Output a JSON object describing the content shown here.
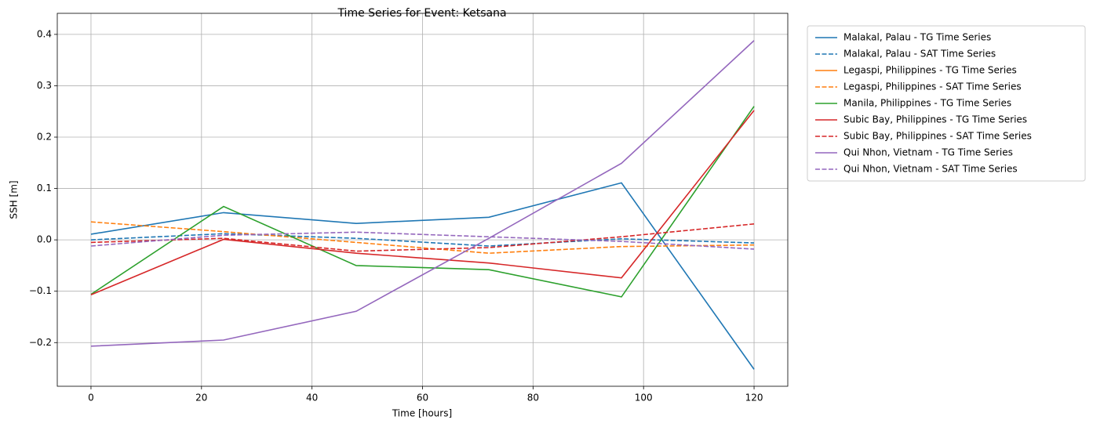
{
  "chart_data": {
    "type": "line",
    "title": "Time Series for Event: Ketsana",
    "xlabel": "Time [hours]",
    "ylabel": "SSH [m]",
    "x": [
      0,
      24,
      48,
      72,
      96,
      120
    ],
    "series": [
      {
        "name": "Malakal, Palau - TG Time Series",
        "color": "#1f77b4",
        "dashed": false,
        "values": [
          0.011,
          0.053,
          0.032,
          0.044,
          0.111,
          -0.252
        ]
      },
      {
        "name": "Malakal, Palau - SAT Time Series",
        "color": "#1f77b4",
        "dashed": true,
        "values": [
          0.0,
          0.012,
          0.003,
          -0.012,
          0.002,
          -0.006
        ]
      },
      {
        "name": "Legaspi, Philippines - TG Time Series",
        "color": "#ff7f0e",
        "dashed": false,
        "values": [
          null,
          null,
          null,
          null,
          null,
          null
        ]
      },
      {
        "name": "Legaspi, Philippines - SAT Time Series",
        "color": "#ff7f0e",
        "dashed": true,
        "values": [
          0.035,
          0.016,
          -0.005,
          -0.026,
          -0.013,
          -0.01
        ]
      },
      {
        "name": "Manila, Philippines - TG Time Series",
        "color": "#2ca02c",
        "dashed": false,
        "values": [
          -0.106,
          0.065,
          -0.05,
          -0.058,
          -0.111,
          0.26
        ]
      },
      {
        "name": "Subic Bay, Philippines - TG Time Series",
        "color": "#d62728",
        "dashed": false,
        "values": [
          -0.107,
          0.001,
          -0.026,
          -0.045,
          -0.074,
          0.252
        ]
      },
      {
        "name": "Subic Bay, Philippines - SAT Time Series",
        "color": "#d62728",
        "dashed": true,
        "values": [
          -0.005,
          0.003,
          -0.022,
          -0.015,
          0.006,
          0.031
        ]
      },
      {
        "name": "Qui Nhon, Vietnam - TG Time Series",
        "color": "#9467bd",
        "dashed": false,
        "values": [
          -0.207,
          -0.195,
          -0.139,
          0.003,
          0.149,
          0.388
        ]
      },
      {
        "name": "Qui Nhon, Vietnam - SAT Time Series",
        "color": "#9467bd",
        "dashed": true,
        "values": [
          -0.012,
          0.009,
          0.015,
          0.006,
          -0.003,
          -0.018
        ]
      }
    ],
    "xlim": [
      -6.1,
      126.1
    ],
    "ylim": [
      -0.285,
      0.441
    ],
    "xticks": [
      0,
      20,
      40,
      60,
      80,
      100,
      120
    ],
    "yticks": [
      {
        "value": -0.2,
        "label": "−0.2"
      },
      {
        "value": -0.1,
        "label": "−0.1"
      },
      {
        "value": 0,
        "label": "0.0"
      },
      0.1,
      0.2,
      0.3,
      0.4
    ],
    "grid": true,
    "legend": "outside upper right"
  }
}
